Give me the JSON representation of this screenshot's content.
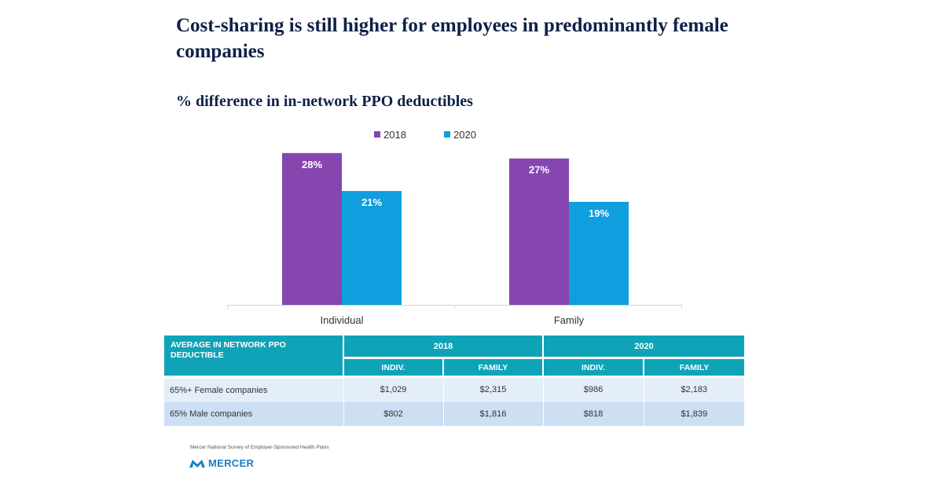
{
  "title": "Cost-sharing is still higher for employees in predominantly female companies",
  "chart_data": {
    "type": "bar",
    "subtitle": "% difference in in-network PPO deductibles",
    "categories": [
      "Individual",
      "Family"
    ],
    "series": [
      {
        "name": "2018",
        "values": [
          28,
          27
        ],
        "labels": [
          "28%",
          "27%"
        ],
        "color": "#8546b0"
      },
      {
        "name": "2020",
        "values": [
          21,
          19
        ],
        "labels": [
          "21%",
          "19%"
        ],
        "color": "#0f9ede"
      }
    ],
    "ylim": [
      0,
      30
    ],
    "grid": false,
    "legend_position": "top"
  },
  "table": {
    "header_label": "AVERAGE IN NETWORK PPO DEDUCTIBLE",
    "years": [
      "2018",
      "2020"
    ],
    "subheaders": [
      "INDIV.",
      "FAMILY",
      "INDIV.",
      "FAMILY"
    ],
    "rows": [
      {
        "label": "65%+ Female companies",
        "cells": [
          "$1,029",
          "$2,315",
          "$986",
          "$2,183"
        ]
      },
      {
        "label": "65% Male companies",
        "cells": [
          "$802",
          "$1,816",
          "$818",
          "$1,839"
        ]
      }
    ]
  },
  "footer": {
    "source": "Mercer National Survey of Employer-Sponsored Health Plans",
    "logo_text": "MERCER"
  }
}
